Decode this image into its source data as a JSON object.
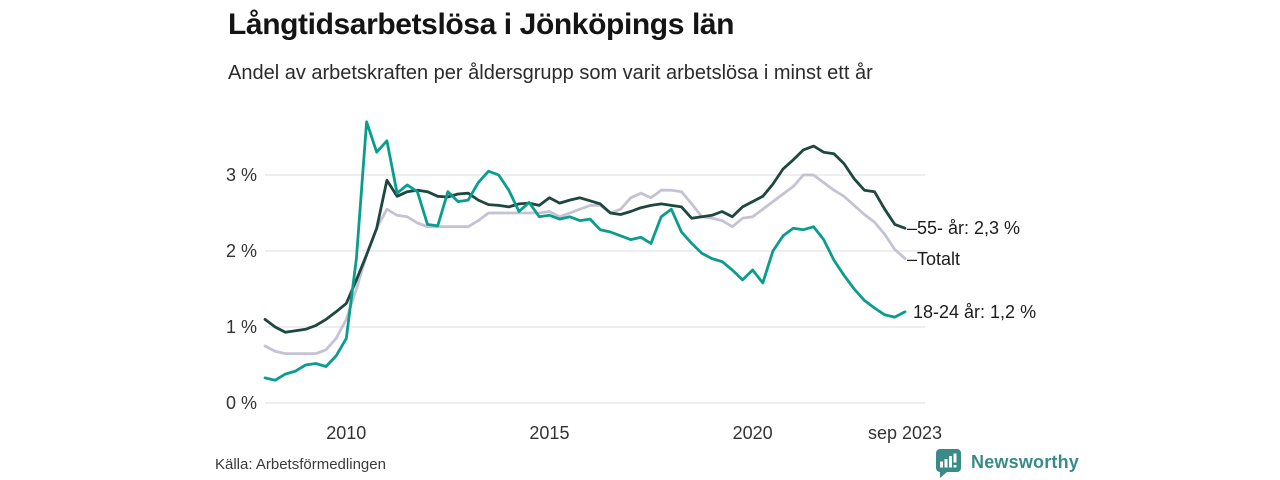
{
  "header": {
    "title": "Långtidsarbetslösa i Jönköpings län",
    "subtitle": "Andel av arbetskraften per åldersgrupp som varit arbetslösa i minst ett år"
  },
  "chart_data": {
    "type": "line",
    "title": "Långtidsarbetslösa i Jönköpings län",
    "x_unit": "year, quarterly estimates from monthly series",
    "x": [
      2008,
      2008.25,
      2008.5,
      2008.75,
      2009,
      2009.25,
      2009.5,
      2009.75,
      2010,
      2010.25,
      2010.5,
      2010.75,
      2011,
      2011.25,
      2011.5,
      2011.75,
      2012,
      2012.25,
      2012.5,
      2012.75,
      2013,
      2013.25,
      2013.5,
      2013.75,
      2014,
      2014.25,
      2014.5,
      2014.75,
      2015,
      2015.25,
      2015.5,
      2015.75,
      2016,
      2016.25,
      2016.5,
      2016.75,
      2017,
      2017.25,
      2017.5,
      2017.75,
      2018,
      2018.25,
      2018.5,
      2018.75,
      2019,
      2019.25,
      2019.5,
      2019.75,
      2020,
      2020.25,
      2020.5,
      2020.75,
      2021,
      2021.25,
      2021.5,
      2021.75,
      2022,
      2022.25,
      2022.5,
      2022.75,
      2023,
      2023.25,
      2023.5,
      2023.75
    ],
    "series": [
      {
        "name": "55- år",
        "label": "–55- år: 2,3 %",
        "color": "#1d473f",
        "end_value": 2.3,
        "values": [
          1.1,
          1.0,
          0.93,
          0.95,
          0.97,
          1.02,
          1.1,
          1.2,
          1.31,
          1.62,
          1.95,
          2.3,
          2.93,
          2.72,
          2.78,
          2.8,
          2.78,
          2.72,
          2.71,
          2.75,
          2.76,
          2.67,
          2.61,
          2.6,
          2.58,
          2.62,
          2.63,
          2.6,
          2.7,
          2.63,
          2.67,
          2.7,
          2.66,
          2.62,
          2.5,
          2.48,
          2.52,
          2.57,
          2.6,
          2.62,
          2.6,
          2.58,
          2.43,
          2.45,
          2.47,
          2.52,
          2.45,
          2.58,
          2.65,
          2.72,
          2.88,
          3.08,
          3.2,
          3.33,
          3.38,
          3.3,
          3.28,
          3.15,
          2.95,
          2.8,
          2.78,
          2.55,
          2.35,
          2.3
        ]
      },
      {
        "name": "Totalt",
        "label": "–Totalt",
        "color": "#c5c3d3",
        "end_value": 1.9,
        "values": [
          0.75,
          0.68,
          0.65,
          0.65,
          0.65,
          0.65,
          0.7,
          0.85,
          1.1,
          1.5,
          1.95,
          2.3,
          2.55,
          2.47,
          2.45,
          2.37,
          2.32,
          2.32,
          2.32,
          2.32,
          2.32,
          2.4,
          2.5,
          2.5,
          2.5,
          2.5,
          2.5,
          2.5,
          2.52,
          2.45,
          2.5,
          2.55,
          2.6,
          2.6,
          2.5,
          2.55,
          2.7,
          2.76,
          2.7,
          2.8,
          2.8,
          2.78,
          2.62,
          2.45,
          2.43,
          2.4,
          2.32,
          2.43,
          2.45,
          2.55,
          2.65,
          2.75,
          2.85,
          3.0,
          3.0,
          2.9,
          2.8,
          2.72,
          2.6,
          2.48,
          2.38,
          2.22,
          2.02,
          1.9
        ]
      },
      {
        "name": "18-24 år",
        "label": "18-24 år: 1,2 %",
        "color": "#0a9d8c",
        "end_value": 1.2,
        "values": [
          0.33,
          0.3,
          0.38,
          0.42,
          0.5,
          0.52,
          0.48,
          0.62,
          0.85,
          1.9,
          3.7,
          3.3,
          3.45,
          2.76,
          2.87,
          2.78,
          2.35,
          2.33,
          2.78,
          2.65,
          2.67,
          2.9,
          3.05,
          3.0,
          2.8,
          2.52,
          2.64,
          2.45,
          2.47,
          2.42,
          2.45,
          2.4,
          2.42,
          2.28,
          2.25,
          2.2,
          2.15,
          2.18,
          2.1,
          2.45,
          2.55,
          2.25,
          2.1,
          1.97,
          1.9,
          1.86,
          1.75,
          1.62,
          1.75,
          1.58,
          2.0,
          2.2,
          2.3,
          2.28,
          2.32,
          2.15,
          1.88,
          1.68,
          1.5,
          1.35,
          1.25,
          1.16,
          1.13,
          1.2
        ]
      }
    ],
    "ylim": [
      0,
      3.9
    ],
    "yticks": [
      0,
      1,
      2,
      3
    ],
    "ytick_labels": [
      "0 %",
      "1 %",
      "2 %",
      "3 %"
    ],
    "xticks": [
      2010,
      2015,
      2020,
      2023.75
    ],
    "xtick_labels": [
      "2010",
      "2015",
      "2020",
      "sep 2023"
    ],
    "grid": "horizontal",
    "gridline_color": "#e8e7ed",
    "legend_position": "right-line-end"
  },
  "footer": {
    "source": "Källa: Arbetsförmedlingen",
    "brand": "Newsworthy",
    "brand_color": "#3a8b87"
  }
}
